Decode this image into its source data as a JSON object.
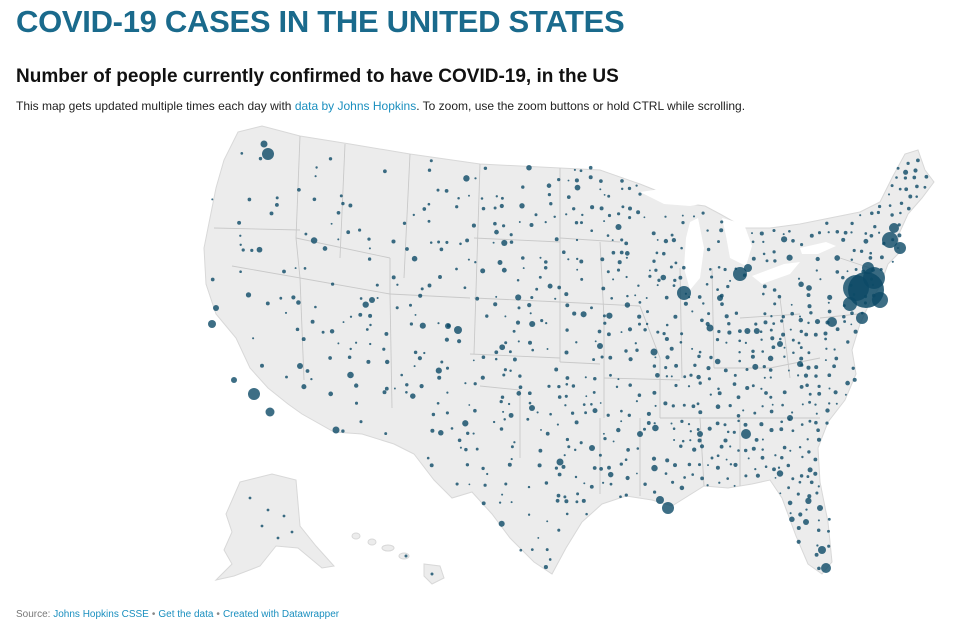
{
  "header": {
    "title": "COVID-19 CASES IN THE UNITED STATES"
  },
  "chart": {
    "subtitle": "Number of people currently confirmed to have COVID-19, in the US",
    "intro_prefix": "This map gets updated multiple times each day with ",
    "intro_link": "data by Johns Hopkins",
    "intro_suffix": ". To zoom, use the zoom buttons or hold CTRL while scrolling."
  },
  "footer": {
    "source_label": "Source:",
    "source_link": "Johns Hopkins CSSE",
    "separator": "•",
    "get_data_link": "Get the data",
    "created_link": "Created with Datawrapper"
  },
  "colors": {
    "title": "#1a6a8c",
    "link": "#1a8fbf",
    "land": "#ececec",
    "borders": "#c9c9c9",
    "bubble": "#0d4a66"
  },
  "map": {
    "type": "symbol-map",
    "region": "United States (counties)",
    "symbol": "circle sized by confirmed cases"
  }
}
